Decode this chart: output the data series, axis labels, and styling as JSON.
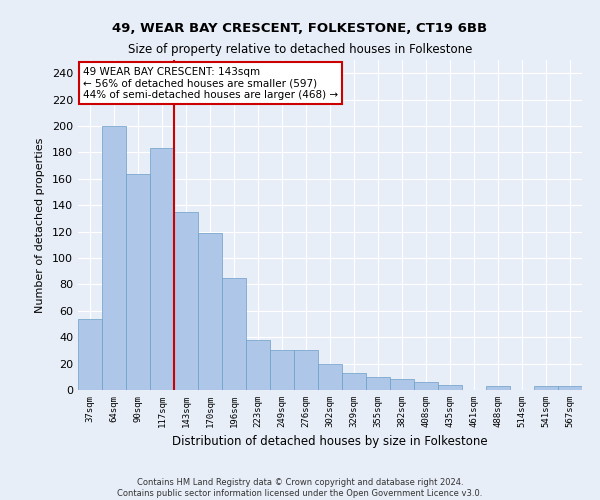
{
  "title1": "49, WEAR BAY CRESCENT, FOLKESTONE, CT19 6BB",
  "title2": "Size of property relative to detached houses in Folkestone",
  "xlabel": "Distribution of detached houses by size in Folkestone",
  "ylabel": "Number of detached properties",
  "footer1": "Contains HM Land Registry data © Crown copyright and database right 2024.",
  "footer2": "Contains public sector information licensed under the Open Government Licence v3.0.",
  "categories": [
    "37sqm",
    "64sqm",
    "90sqm",
    "117sqm",
    "143sqm",
    "170sqm",
    "196sqm",
    "223sqm",
    "249sqm",
    "276sqm",
    "302sqm",
    "329sqm",
    "355sqm",
    "382sqm",
    "408sqm",
    "435sqm",
    "461sqm",
    "488sqm",
    "514sqm",
    "541sqm",
    "567sqm"
  ],
  "values": [
    54,
    200,
    164,
    183,
    135,
    119,
    85,
    38,
    30,
    30,
    20,
    13,
    10,
    8,
    6,
    4,
    0,
    3,
    0,
    3,
    3
  ],
  "bar_color": "#aec6e8",
  "bar_edge_color": "#6a9fc8",
  "red_line_index": 4,
  "ylim": [
    0,
    250
  ],
  "yticks": [
    0,
    20,
    40,
    60,
    80,
    100,
    120,
    140,
    160,
    180,
    200,
    220,
    240
  ],
  "annotation_title": "49 WEAR BAY CRESCENT: 143sqm",
  "annotation_line1": "← 56% of detached houses are smaller (597)",
  "annotation_line2": "44% of semi-detached houses are larger (468) →",
  "annotation_box_color": "#ffffff",
  "annotation_box_edge": "#cc0000",
  "background_color": "#e8eef8",
  "grid_color": "#ffffff",
  "title1_fontsize": 9.5,
  "title2_fontsize": 8.5
}
